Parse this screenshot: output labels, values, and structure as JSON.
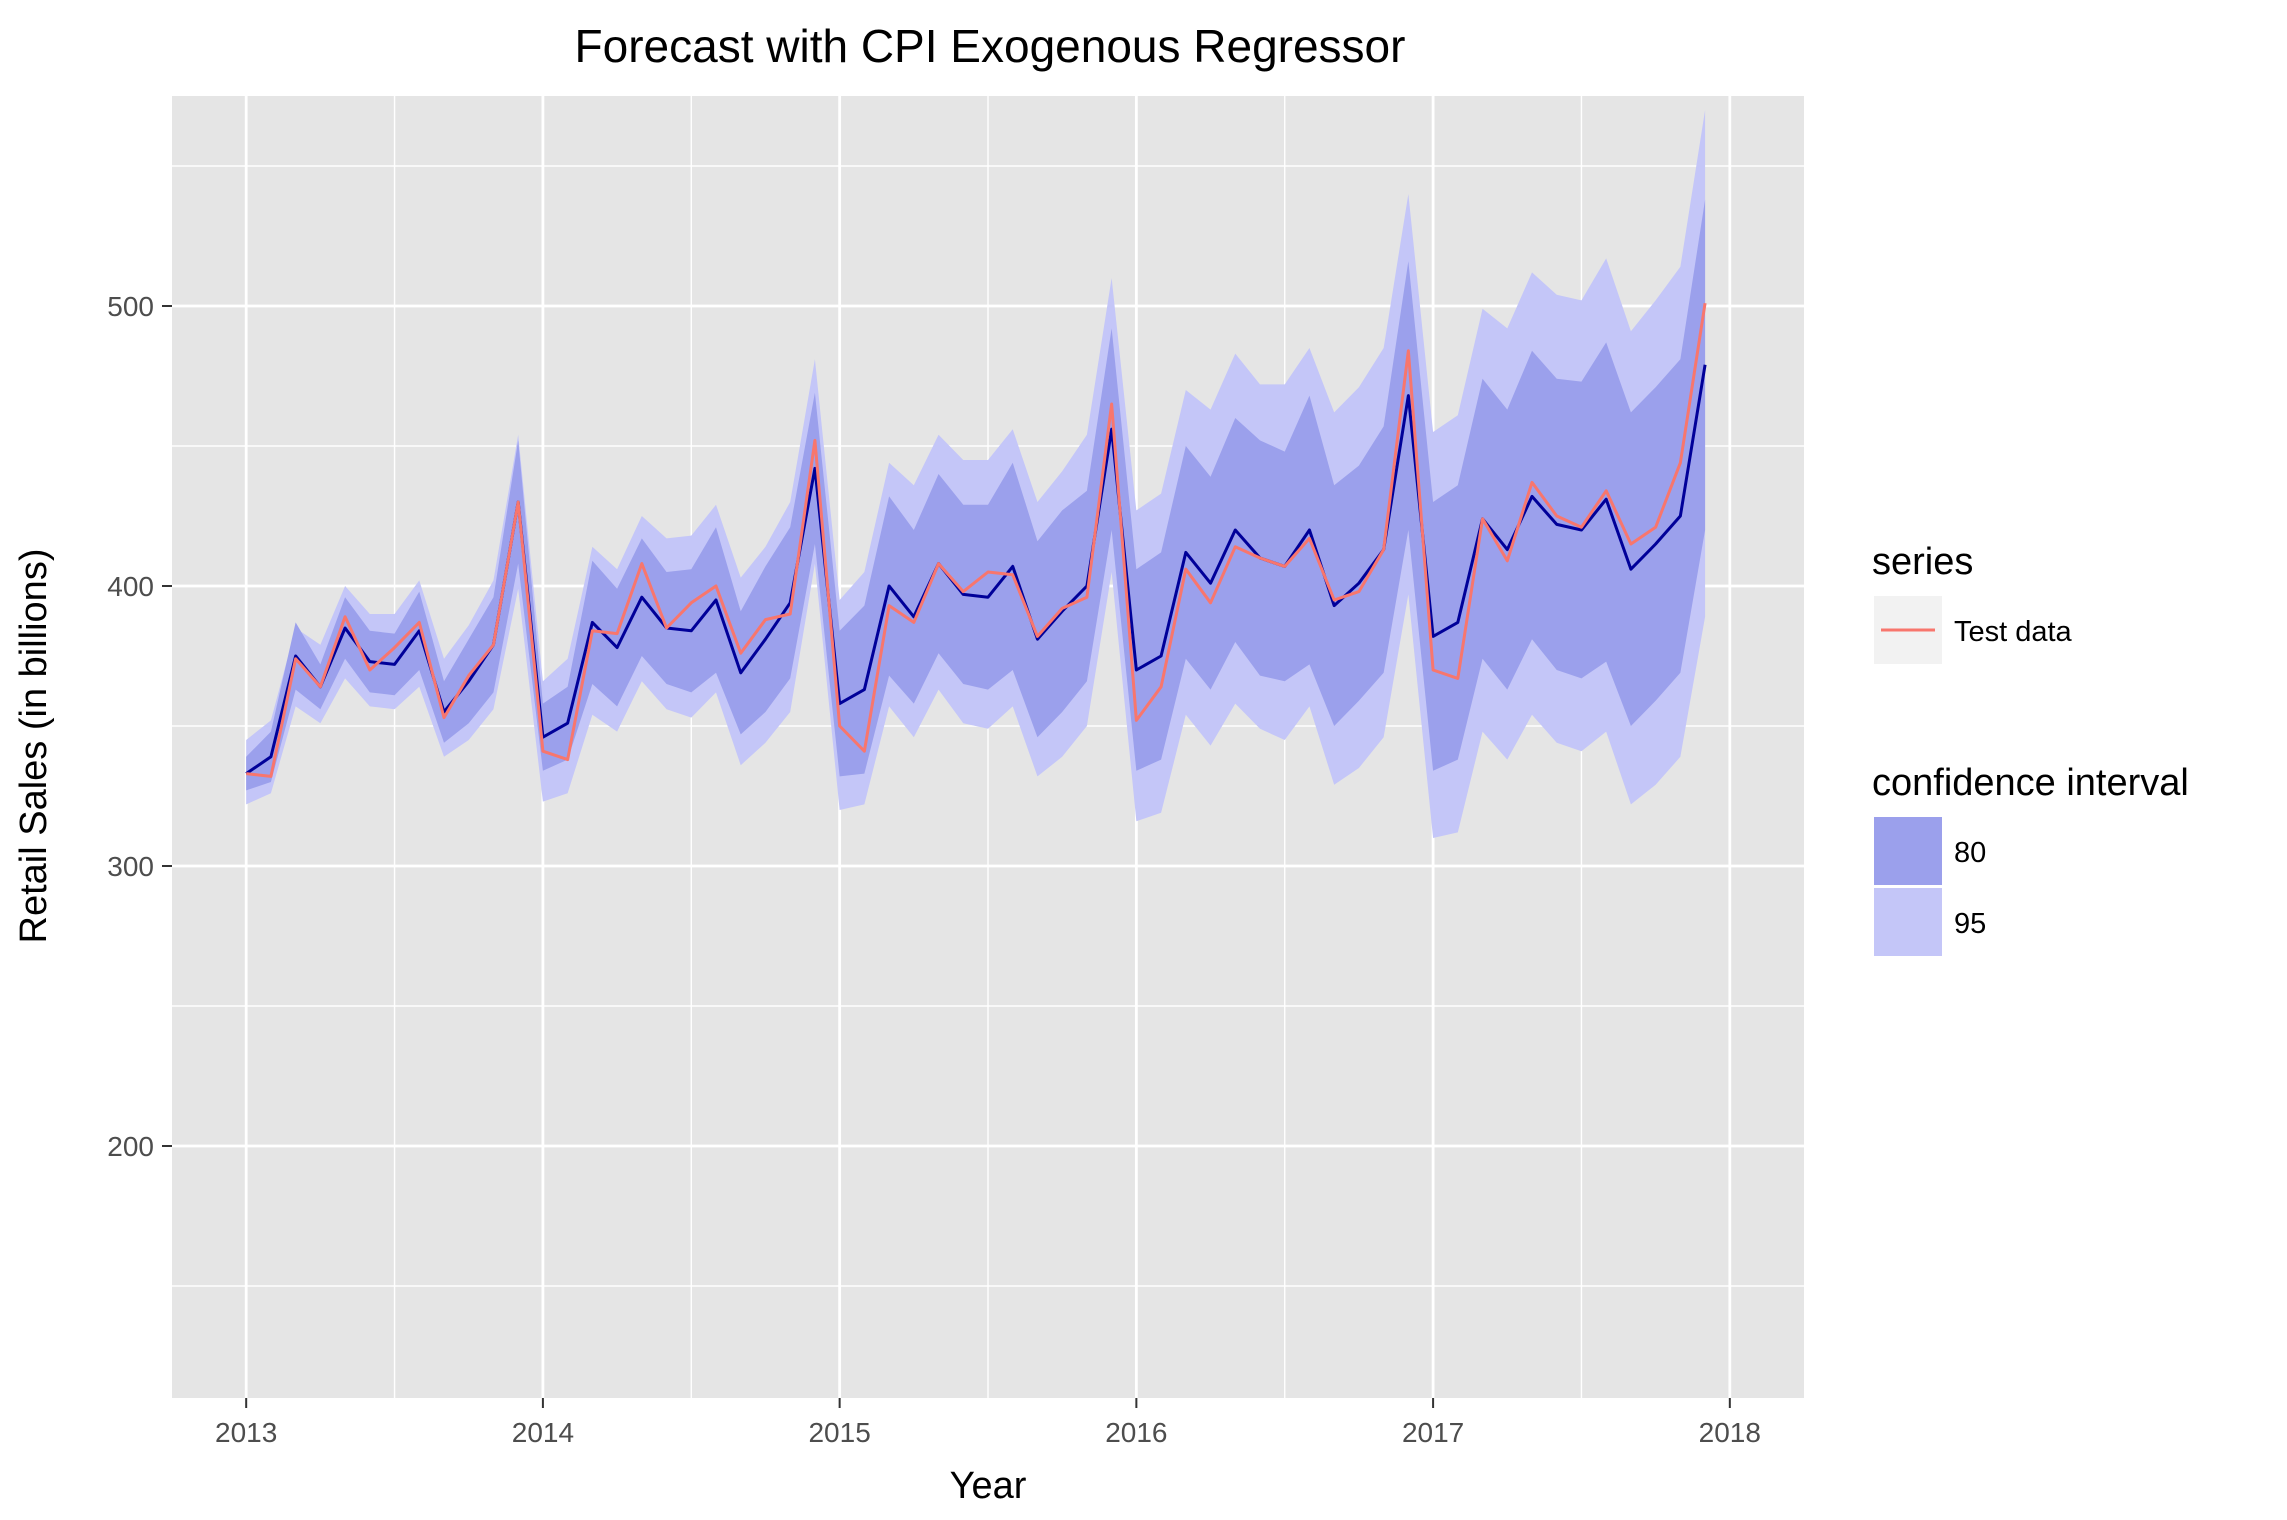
{
  "chart_data": {
    "type": "line",
    "title": "Forecast with CPI Exogenous Regressor",
    "xlabel": "Year",
    "ylabel": "Retail Sales (in billions)",
    "xlim": [
      2012.75,
      2018.25
    ],
    "ylim": [
      110,
      575
    ],
    "x_ticks": [
      2013,
      2014,
      2015,
      2016,
      2017,
      2018
    ],
    "x_tick_labels": [
      "2013",
      "2014",
      "2015",
      "2016",
      "2017",
      "2018"
    ],
    "y_ticks": [
      200,
      300,
      400,
      500
    ],
    "y_tick_labels": [
      "200",
      "300",
      "400",
      "500"
    ],
    "y_minor_gridlines": [
      150,
      250,
      350,
      450,
      550
    ],
    "grid": true,
    "x_start": 2013.0,
    "x_step": 0.0833333,
    "legend": {
      "position": "right",
      "series_title": "series",
      "series_entries": [
        {
          "label": "Test data",
          "color": "#f8766d"
        }
      ],
      "ci_title": "confidence interval",
      "ci_entries": [
        {
          "label": "80",
          "color": "#9ba0ec"
        },
        {
          "label": "95",
          "color": "#c4c6f8"
        }
      ]
    },
    "colors": {
      "panel_bg": "#e5e5e5",
      "grid": "#ffffff",
      "forecast_line": "#000099",
      "test_line": "#f8766d",
      "ci80": "#9ba0ec",
      "ci95": "#c4c6f8"
    },
    "series": [
      {
        "name": "Test data",
        "role": "actual",
        "values": [
          333,
          332,
          374,
          364,
          389,
          370,
          378,
          387,
          353,
          368,
          379,
          430,
          341,
          338,
          384,
          383,
          408,
          385,
          394,
          400,
          376,
          388,
          390,
          452,
          350,
          341,
          393,
          387,
          408,
          398,
          405,
          404,
          382,
          392,
          396,
          465,
          352,
          364,
          406,
          394,
          414,
          410,
          407,
          417,
          395,
          398,
          413,
          484,
          370,
          367,
          424,
          409,
          437,
          425,
          421,
          434,
          415,
          421,
          444,
          501
        ]
      },
      {
        "role": "forecast",
        "values": [
          333,
          339,
          375,
          364,
          385,
          373,
          372,
          384,
          355,
          366,
          379,
          430,
          346,
          351,
          387,
          378,
          396,
          385,
          384,
          395,
          369,
          381,
          394,
          442,
          358,
          363,
          400,
          389,
          408,
          397,
          396,
          407,
          381,
          391,
          400,
          456,
          370,
          375,
          412,
          401,
          420,
          410,
          407,
          420,
          393,
          401,
          413,
          468,
          382,
          387,
          424,
          413,
          432,
          422,
          420,
          431,
          406,
          415,
          425,
          479
        ]
      }
    ],
    "ci80_lower": [
      327,
      330,
      363,
      356,
      374,
      362,
      361,
      370,
      344,
      351,
      362,
      408,
      334,
      338,
      365,
      357,
      375,
      365,
      362,
      369,
      347,
      355,
      367,
      415,
      332,
      333,
      368,
      358,
      376,
      365,
      363,
      370,
      346,
      355,
      366,
      420,
      334,
      338,
      374,
      363,
      380,
      368,
      366,
      372,
      350,
      359,
      369,
      420,
      334,
      338,
      374,
      363,
      381,
      370,
      367,
      373,
      350,
      359,
      369,
      420
    ],
    "ci80_upper": [
      339,
      348,
      387,
      372,
      396,
      384,
      383,
      398,
      366,
      381,
      396,
      452,
      358,
      364,
      409,
      399,
      417,
      405,
      406,
      421,
      391,
      407,
      421,
      469,
      384,
      393,
      432,
      420,
      440,
      429,
      429,
      444,
      416,
      427,
      434,
      492,
      406,
      412,
      450,
      439,
      460,
      452,
      448,
      468,
      436,
      443,
      457,
      516,
      430,
      436,
      474,
      463,
      484,
      474,
      473,
      487,
      462,
      471,
      481,
      538
    ],
    "ci95_lower": [
      322,
      326,
      357,
      351,
      367,
      357,
      356,
      364,
      339,
      345,
      356,
      399,
      323,
      326,
      354,
      348,
      366,
      356,
      353,
      362,
      336,
      344,
      355,
      408,
      320,
      322,
      357,
      346,
      363,
      351,
      349,
      357,
      332,
      339,
      350,
      405,
      316,
      319,
      354,
      343,
      358,
      349,
      345,
      357,
      329,
      335,
      346,
      397,
      310,
      312,
      348,
      338,
      354,
      344,
      341,
      348,
      322,
      329,
      339,
      389
    ],
    "ci95_upper": [
      345,
      352,
      385,
      379,
      400,
      390,
      390,
      402,
      374,
      386,
      402,
      454,
      366,
      374,
      414,
      406,
      425,
      417,
      418,
      429,
      403,
      414,
      430,
      481,
      395,
      405,
      444,
      436,
      454,
      445,
      445,
      456,
      430,
      441,
      454,
      510,
      427,
      433,
      470,
      463,
      483,
      472,
      472,
      485,
      462,
      471,
      485,
      540,
      455,
      461,
      499,
      492,
      512,
      504,
      502,
      517,
      491,
      502,
      514,
      570
    ]
  }
}
